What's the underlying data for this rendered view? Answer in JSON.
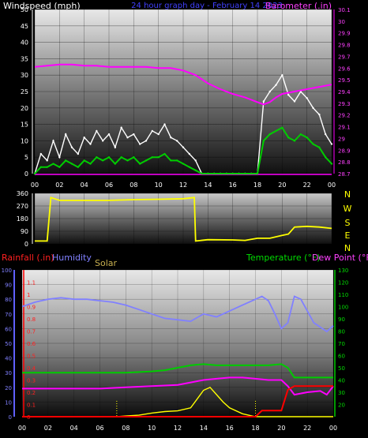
{
  "header": {
    "windspeed_label": "Windspeed (mph)",
    "center_title": "24 hour graph day - February 14 2023",
    "barometer_label": "Barometer (.in)"
  },
  "direction_labels": [
    "N",
    "W",
    "S",
    "E",
    "N"
  ],
  "bottom_labels": {
    "rainfall": "Rainfall (.in)",
    "humidity": "Humidity",
    "solar": "Solar",
    "temperature": "Temperature (°F)",
    "dewpoint": "Dew Point (°F)"
  },
  "colors": {
    "wind_gust": "#ffffff",
    "wind_avg": "#00cc00",
    "barometer": "#ff00ff",
    "direction": "#ffff00",
    "rain": "#ff0000",
    "humidity": "#8080ff",
    "solar": "#ffff00",
    "temperature": "#00cc00",
    "dewpoint": "#ff00ff"
  },
  "chart_data": [
    {
      "type": "line",
      "x_ticks": [
        "00",
        "02",
        "04",
        "06",
        "08",
        "10",
        "12",
        "14",
        "16",
        "18",
        "20",
        "22",
        "00"
      ],
      "ylim": [
        0,
        50
      ],
      "y_ticks": [
        "0",
        "5",
        "10",
        "15",
        "20",
        "25",
        "30",
        "35",
        "40",
        "45",
        "50"
      ],
      "y2lim": [
        28.7,
        30.1
      ],
      "y2_ticks": [
        "28.7",
        "28.8",
        "28.9",
        "29",
        "29.1",
        "29.2",
        "29.3",
        "29.4",
        "29.5",
        "29.6",
        "29.7",
        "29.8",
        "29.9",
        "30",
        "30.1"
      ],
      "series": [
        {
          "x": [
            0,
            0.5,
            1,
            1.5,
            2,
            2.5,
            3,
            3.5,
            4,
            4.5,
            5,
            5.5,
            6,
            6.5,
            7,
            7.5,
            8,
            8.5,
            9,
            9.5,
            10,
            10.5,
            11,
            11.5,
            12,
            12.5,
            13,
            13.5,
            14,
            14.5,
            15,
            15.5,
            16,
            16.5,
            17,
            17.5,
            18,
            18.5,
            19,
            19.5,
            20,
            20.5,
            21,
            21.5,
            22,
            22.5,
            23,
            23.5,
            24
          ],
          "values": [
            0,
            6,
            4,
            10,
            5,
            12,
            8,
            6,
            11,
            9,
            13,
            10,
            12,
            8,
            14,
            11,
            12,
            9,
            10,
            13,
            12,
            15,
            11,
            10,
            8,
            6,
            4,
            0,
            0,
            0,
            0,
            0,
            0,
            0,
            0,
            0,
            0,
            22,
            25,
            27,
            30,
            24,
            22,
            25,
            23,
            20,
            18,
            12,
            9
          ]
        },
        {
          "x": [
            0,
            0.5,
            1,
            1.5,
            2,
            2.5,
            3,
            3.5,
            4,
            4.5,
            5,
            5.5,
            6,
            6.5,
            7,
            7.5,
            8,
            8.5,
            9,
            9.5,
            10,
            10.5,
            11,
            11.5,
            12,
            12.5,
            13,
            13.5,
            14,
            14.5,
            15,
            15.5,
            16,
            16.5,
            17,
            17.5,
            18,
            18.5,
            19,
            19.5,
            20,
            20.5,
            21,
            21.5,
            22,
            22.5,
            23,
            23.5,
            24
          ],
          "values": [
            0,
            2,
            2,
            3,
            2,
            4,
            3,
            2,
            4,
            3,
            5,
            4,
            5,
            3,
            5,
            4,
            5,
            3,
            4,
            5,
            5,
            6,
            4,
            4,
            3,
            2,
            1,
            0,
            0,
            0,
            0,
            0,
            0,
            0,
            0,
            0,
            0,
            10,
            12,
            13,
            14,
            11,
            10,
            12,
            11,
            9,
            8,
            5,
            3
          ]
        },
        {
          "x": [
            0,
            1,
            2,
            3,
            4,
            5,
            6,
            7,
            8,
            9,
            10,
            11,
            12,
            13,
            14,
            15,
            16,
            17,
            18,
            18.5,
            19,
            19.5,
            20,
            21,
            22,
            23,
            24
          ],
          "values": [
            29.61,
            29.62,
            29.63,
            29.63,
            29.62,
            29.62,
            29.61,
            29.61,
            29.61,
            29.61,
            29.6,
            29.6,
            29.58,
            29.54,
            29.47,
            29.42,
            29.38,
            29.35,
            29.31,
            29.29,
            29.31,
            29.35,
            29.38,
            29.4,
            29.42,
            29.44,
            29.46
          ]
        }
      ]
    },
    {
      "type": "line",
      "ylim": [
        0,
        360
      ],
      "y_ticks": [
        "0",
        "90",
        "180",
        "270",
        "360"
      ],
      "series": [
        {
          "x": [
            0,
            1,
            1.3,
            2,
            4,
            6,
            8,
            10,
            12,
            12.9,
            13,
            14,
            16,
            17,
            18,
            19,
            20,
            20.5,
            21,
            22,
            23,
            24
          ],
          "values": [
            20,
            20,
            330,
            310,
            310,
            310,
            315,
            318,
            322,
            330,
            20,
            30,
            28,
            25,
            40,
            40,
            60,
            70,
            120,
            125,
            120,
            110
          ]
        }
      ]
    },
    {
      "type": "line",
      "x_ticks": [
        "00",
        "02",
        "04",
        "06",
        "08",
        "10",
        "12",
        "14",
        "16",
        "18",
        "20",
        "22",
        "00"
      ],
      "humidity_ylim": [
        0,
        100
      ],
      "humidity_ticks": [
        "0",
        "10",
        "20",
        "30",
        "40",
        "50",
        "60",
        "70",
        "80",
        "90",
        "100"
      ],
      "rain_ylim": [
        0,
        1.2
      ],
      "rain_ticks": [
        "0",
        "0.1",
        "0.2",
        "0.3",
        "0.4",
        "0.5",
        "0.6",
        "0.7",
        "0.8",
        "0.9",
        "1",
        "1.1"
      ],
      "temp_ylim": [
        10,
        130
      ],
      "temp_ticks": [
        "20",
        "30",
        "40",
        "50",
        "60",
        "70",
        "80",
        "90",
        "100",
        "110",
        "120",
        "130"
      ],
      "series": [
        {
          "name": "Humidity",
          "x": [
            0,
            1,
            2,
            3,
            4,
            5,
            6,
            7,
            8,
            9,
            10,
            11,
            12,
            13,
            14,
            15,
            16,
            17,
            18,
            18.5,
            19,
            19.5,
            20,
            20.5,
            21,
            21.5,
            22,
            22.5,
            23,
            23.5,
            24
          ],
          "values": [
            75,
            78,
            80,
            81,
            80,
            80,
            79,
            78,
            76,
            73,
            70,
            67,
            66,
            65,
            70,
            68,
            72,
            76,
            80,
            82,
            79,
            70,
            60,
            64,
            82,
            80,
            72,
            64,
            61,
            58,
            62
          ]
        },
        {
          "name": "Rainfall",
          "x": [
            0,
            18,
            18.5,
            20,
            20.5,
            21,
            22,
            23,
            24
          ],
          "values": [
            0,
            0,
            0.05,
            0.05,
            0.22,
            0.25,
            0.25,
            0.25,
            0.25
          ]
        },
        {
          "name": "Solar",
          "x": [
            0,
            7.3,
            8,
            9,
            10,
            11,
            12,
            13,
            13.5,
            14,
            14.5,
            15,
            15.5,
            16,
            17,
            18,
            24
          ],
          "values": [
            0,
            0,
            5,
            10,
            25,
            35,
            40,
            60,
            120,
            180,
            200,
            150,
            100,
            60,
            20,
            0,
            0
          ]
        },
        {
          "name": "Temperature",
          "x": [
            0,
            2,
            4,
            6,
            8,
            10,
            11,
            12,
            13,
            14,
            15,
            16,
            17,
            18,
            19,
            20,
            20.5,
            21,
            22,
            23,
            24
          ],
          "values": [
            46,
            46,
            46,
            46,
            46,
            47,
            48,
            50,
            52,
            53,
            52,
            52,
            52,
            52,
            52,
            53,
            50,
            42,
            42,
            42,
            42
          ]
        },
        {
          "name": "Dew Point",
          "x": [
            0,
            2,
            4,
            6,
            8,
            10,
            12,
            13,
            14,
            15,
            16,
            17,
            18,
            19,
            20,
            20.5,
            21,
            22,
            23,
            23.5,
            24
          ],
          "values": [
            33,
            33,
            33,
            33,
            34,
            35,
            36,
            38,
            40,
            41,
            42,
            42,
            41,
            40,
            40,
            35,
            28,
            30,
            31,
            28,
            35
          ]
        }
      ]
    }
  ]
}
